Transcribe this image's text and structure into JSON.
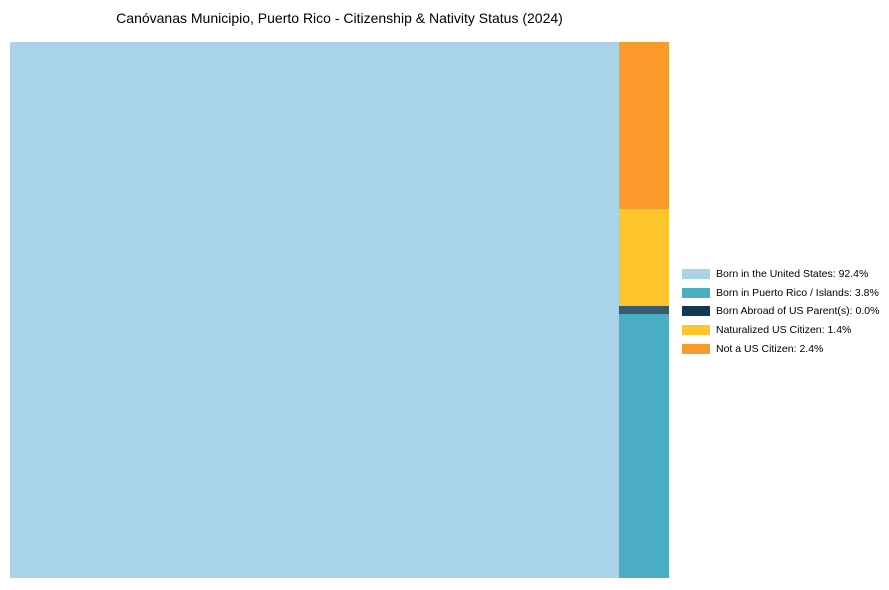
{
  "page": {
    "background": "#ffffff"
  },
  "chart_data": {
    "type": "treemap",
    "title": "Canóvanas Municipio, Puerto Rico - Citizenship & Nativity Status (2024)",
    "unit": "%",
    "legend_position": "right",
    "grid": false,
    "series": [
      {
        "slug": "born-in-us",
        "label": "Born in the United States",
        "value": 92.4,
        "color": "#a8d3e9"
      },
      {
        "slug": "born-in-pr-islands",
        "label": "Born in Puerto Rico / Islands",
        "value": 3.8,
        "color": "#4aadc4"
      },
      {
        "slug": "born-abroad-us-parents",
        "label": "Born Abroad of US Parent(s)",
        "value": 0.0,
        "color": "#113a52",
        "block_color": "#3a596d"
      },
      {
        "slug": "naturalized-us-citizen",
        "label": "Naturalized US Citizen",
        "value": 1.4,
        "color": "#fdc42c"
      },
      {
        "slug": "not-a-us-citizen",
        "label": "Not a US Citizen",
        "value": 2.4,
        "color": "#f99a2b"
      }
    ]
  }
}
